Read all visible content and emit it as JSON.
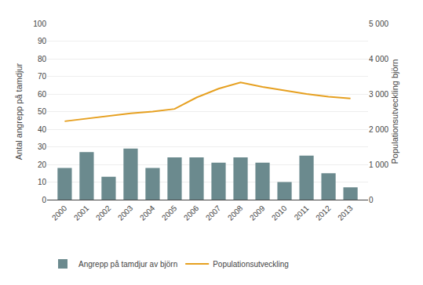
{
  "chart_data": {
    "type": "bar",
    "x": [
      2000,
      2001,
      2002,
      2003,
      2004,
      2005,
      2006,
      2007,
      2008,
      2009,
      2010,
      2011,
      2012,
      2013
    ],
    "series": [
      {
        "name": "Angrepp på tamdjur av björn",
        "type": "bar",
        "color": "#6b8a8e",
        "values": [
          18,
          27,
          13,
          29,
          18,
          24,
          24,
          21,
          24,
          21,
          10,
          25,
          15,
          7
        ]
      },
      {
        "name": "Populationsutveckling",
        "type": "line",
        "color": "#e6a020",
        "axis": "y2",
        "values": [
          2225,
          2300,
          2375,
          2450,
          2500,
          2575,
          2900,
          3150,
          3325,
          3200,
          3100,
          3000,
          2925,
          2875
        ]
      }
    ],
    "ylabel": "Antal angrepp på tamdjur",
    "y2label": "Populationsutveckling björn",
    "xlim": [
      1999.2,
      2013.8
    ],
    "xticks": [
      2000,
      2001,
      2002,
      2003,
      2004,
      2005,
      2006,
      2007,
      2008,
      2009,
      2010,
      2011,
      2012,
      2013
    ],
    "ylim": [
      0,
      100
    ],
    "yticks": [
      0,
      10,
      20,
      30,
      40,
      50,
      60,
      70,
      80,
      90,
      100
    ],
    "y2lim": [
      0,
      5000
    ],
    "y2ticks": [
      0,
      {
        "value": 1000,
        "label": "1 000"
      },
      {
        "value": 2000,
        "label": "2 000"
      },
      {
        "value": 3000,
        "label": "3 000"
      },
      {
        "value": 4000,
        "label": "4 000"
      },
      {
        "value": 5000,
        "label": "5 000"
      }
    ],
    "grid": true,
    "legend": "lower left"
  }
}
